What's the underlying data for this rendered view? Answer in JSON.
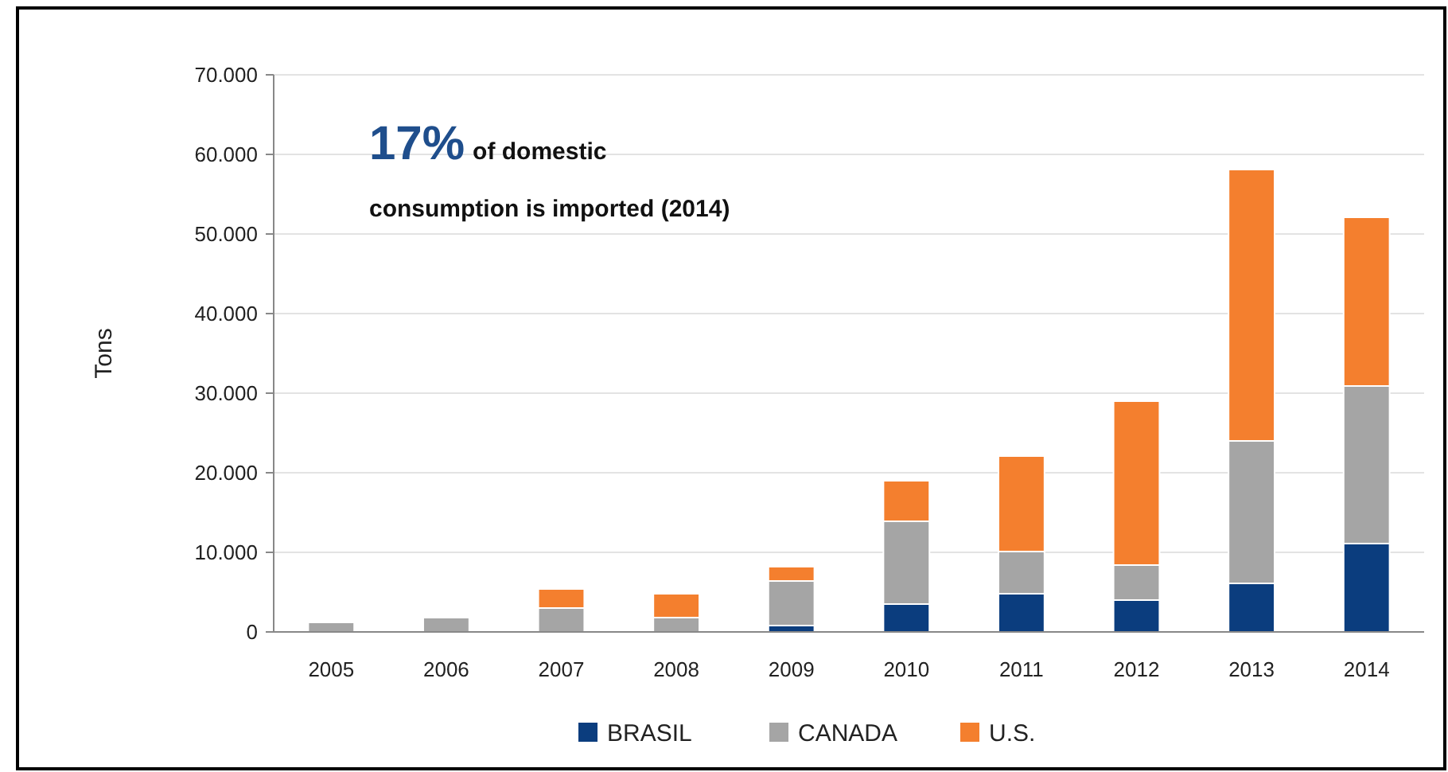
{
  "chart_data": {
    "type": "bar",
    "stacked": true,
    "ylabel": "Tons",
    "categories": [
      "2005",
      "2006",
      "2007",
      "2008",
      "2009",
      "2010",
      "2011",
      "2012",
      "2013",
      "2014"
    ],
    "series": [
      {
        "name": "BRASIL",
        "color": "#0b3d7e",
        "values": [
          0,
          0,
          0,
          0,
          800,
          3500,
          4800,
          4000,
          6100,
          11100
        ]
      },
      {
        "name": "CANADA",
        "color": "#a5a5a5",
        "values": [
          1200,
          1800,
          3000,
          1800,
          5600,
          10400,
          5300,
          4400,
          17900,
          19800
        ]
      },
      {
        "name": "U.S.",
        "color": "#f47f2e",
        "values": [
          0,
          0,
          2400,
          3000,
          1800,
          5100,
          12000,
          20600,
          34100,
          21200
        ]
      }
    ],
    "ylim": [
      0,
      70000
    ],
    "yticks": [
      {
        "value": 0,
        "label": "0"
      },
      {
        "value": 10000,
        "label": "10.000"
      },
      {
        "value": 20000,
        "label": "20.000"
      },
      {
        "value": 30000,
        "label": "30.000"
      },
      {
        "value": 40000,
        "label": "40.000"
      },
      {
        "value": 50000,
        "label": "50.000"
      },
      {
        "value": 60000,
        "label": "60.000"
      },
      {
        "value": 70000,
        "label": "70.000"
      }
    ],
    "grid": "y",
    "legend": "bottom",
    "annotations": [
      "17% of domestic consumption is imported (2014)"
    ]
  }
}
